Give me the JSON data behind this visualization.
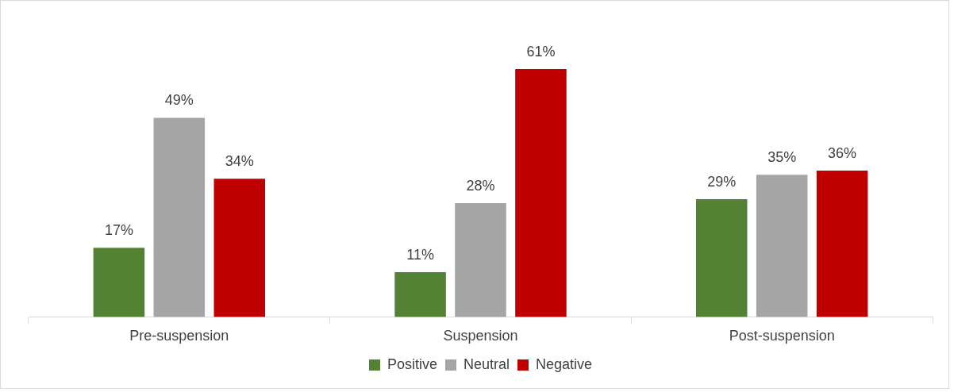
{
  "chart_data": {
    "type": "bar",
    "categories": [
      "Pre-suspension",
      "Suspension",
      "Post-suspension"
    ],
    "series": [
      {
        "name": "Positive",
        "color": "#548235",
        "values": [
          17,
          11,
          29
        ],
        "value_labels": [
          "17%",
          "11%",
          "29%"
        ]
      },
      {
        "name": "Neutral",
        "color": "#a5a5a5",
        "values": [
          49,
          28,
          35
        ],
        "value_labels": [
          "49%",
          "28%",
          "35%"
        ]
      },
      {
        "name": "Negative",
        "color": "#c00000",
        "values": [
          34,
          61,
          36
        ],
        "value_labels": [
          "34%",
          "61%",
          "36%"
        ]
      }
    ],
    "grid": false,
    "legend": "bottom"
  }
}
